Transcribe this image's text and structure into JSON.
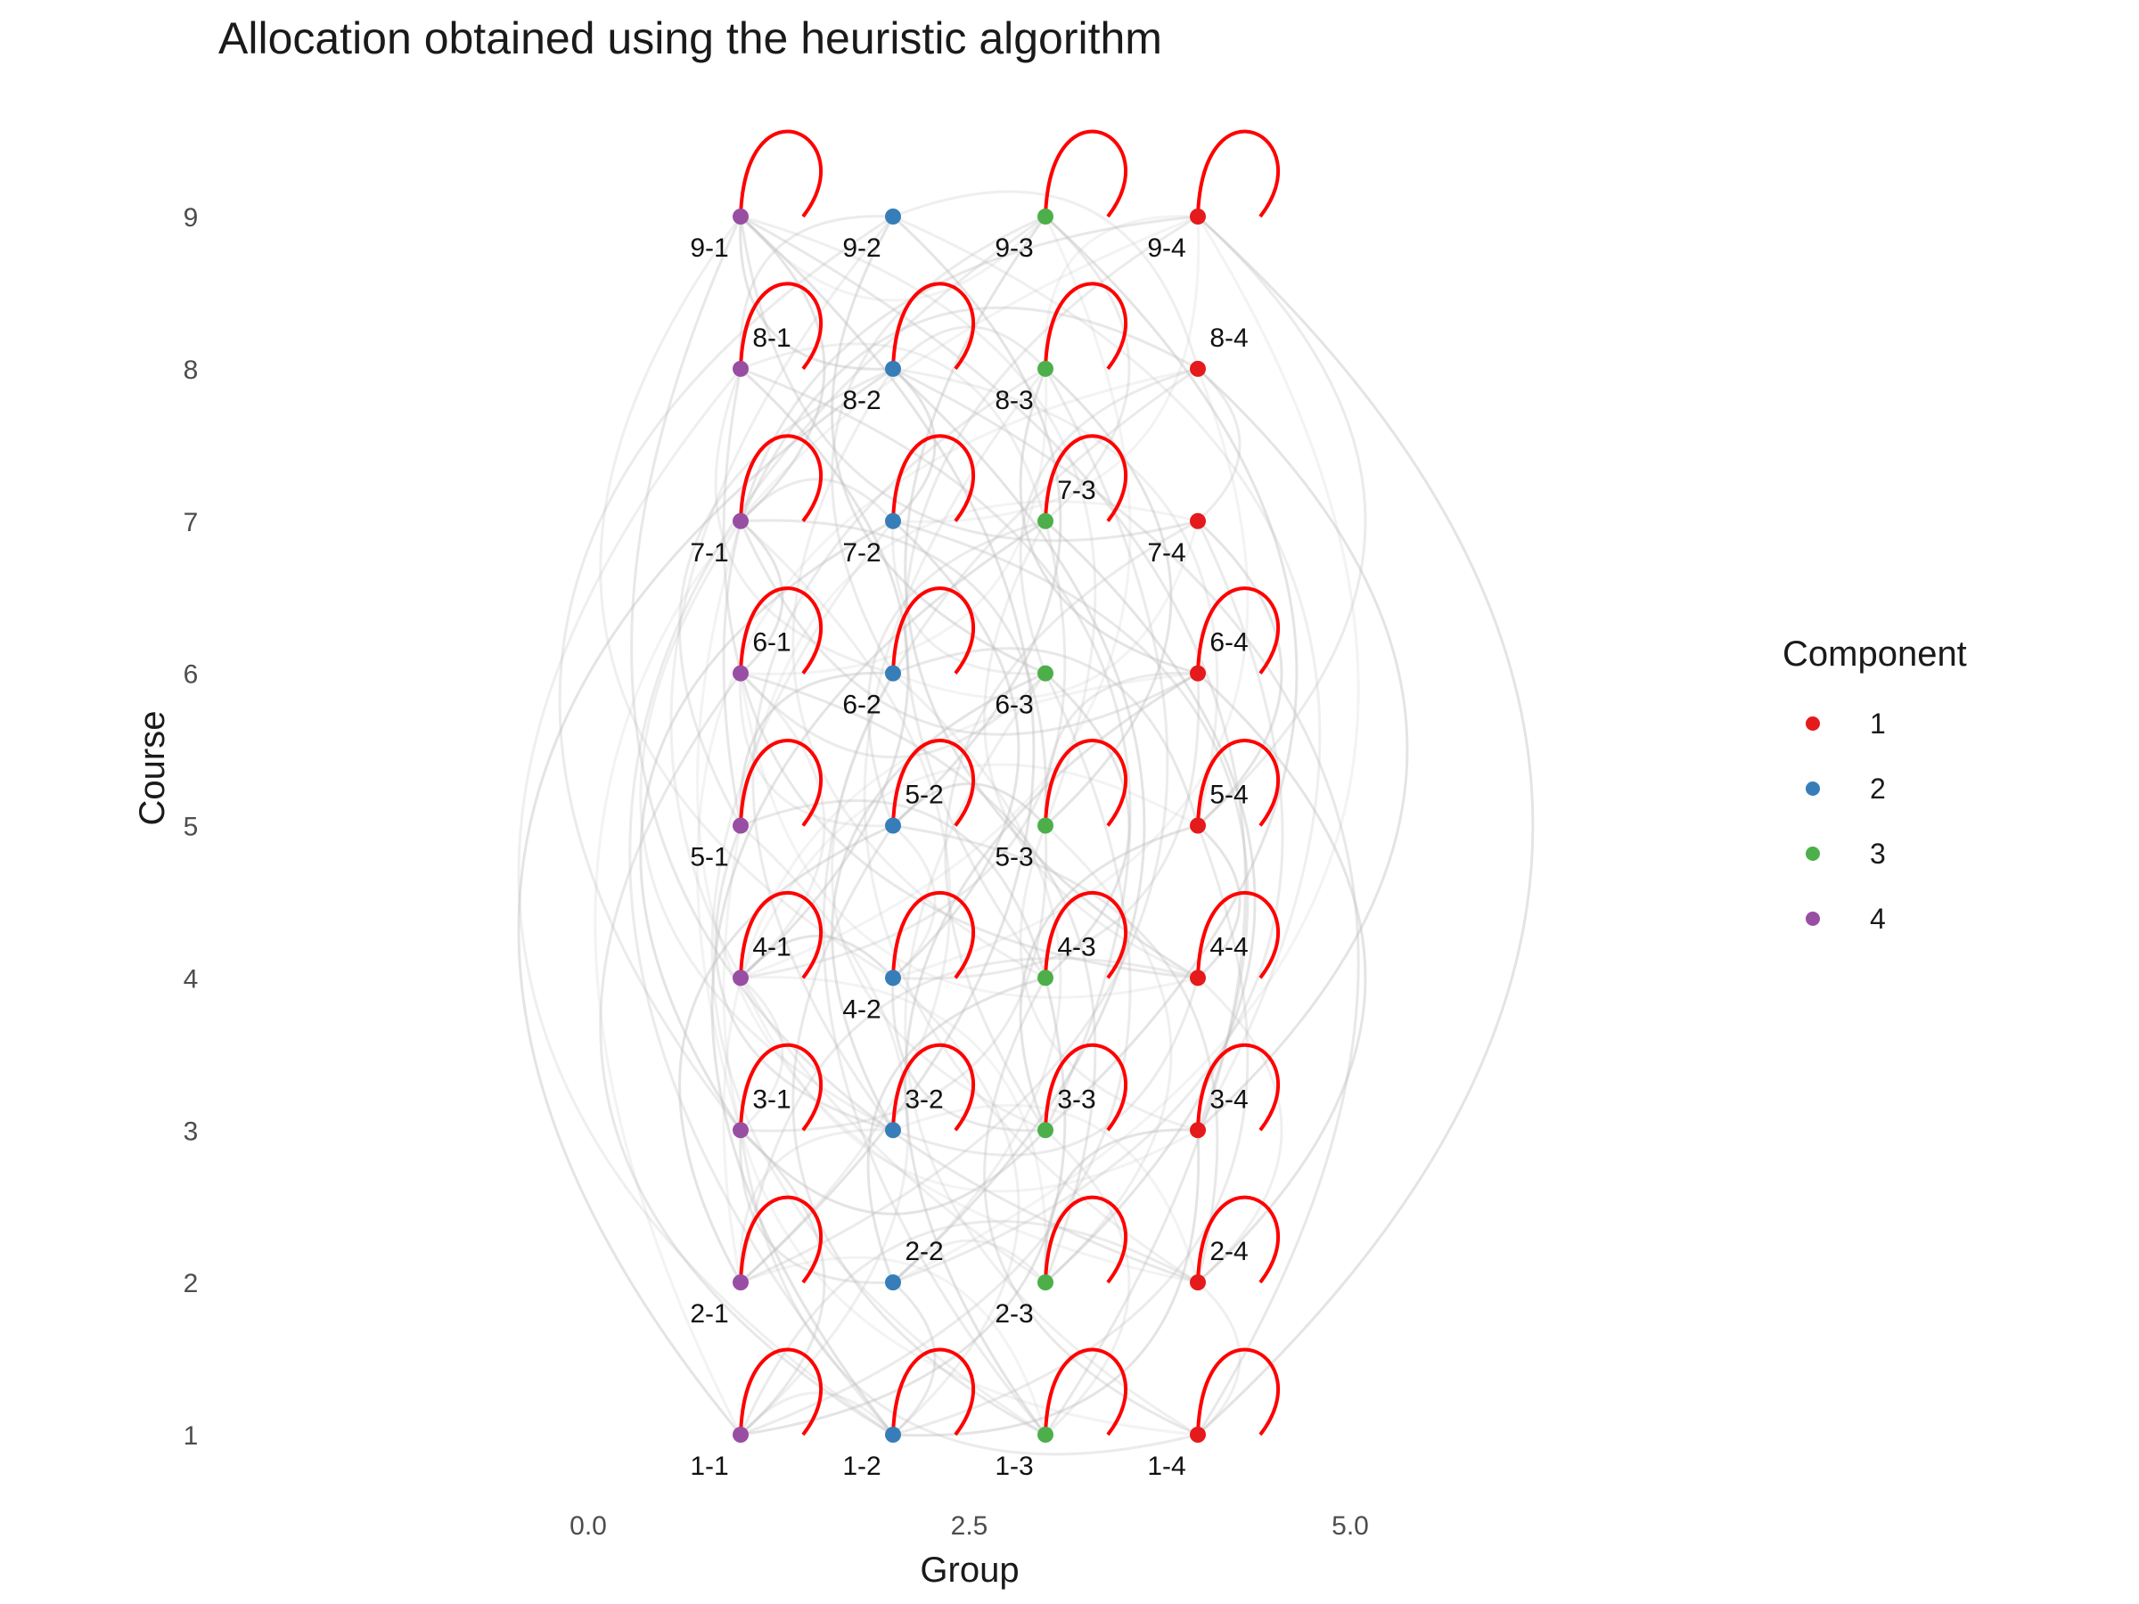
{
  "chart_data": {
    "type": "network",
    "title": "Allocation obtained using the heuristic algorithm",
    "xlabel": "Group",
    "ylabel": "Course",
    "x_ticks": [
      0.0,
      2.5,
      5.0
    ],
    "x_tick_labels": [
      "0.0",
      "2.5",
      "5.0"
    ],
    "y_ticks": [
      1,
      2,
      3,
      4,
      5,
      6,
      7,
      8,
      9
    ],
    "y_tick_labels": [
      "1",
      "2",
      "3",
      "4",
      "5",
      "6",
      "7",
      "8",
      "9"
    ],
    "xlim": [
      -1.9,
      6.9
    ],
    "ylim": [
      0.55,
      9.6
    ],
    "grid": false,
    "legend": {
      "title": "Component",
      "position": "right",
      "entries": [
        {
          "label": "1",
          "color": "#E41A1C"
        },
        {
          "label": "2",
          "color": "#377EB8"
        },
        {
          "label": "3",
          "color": "#4DAF4A"
        },
        {
          "label": "4",
          "color": "#984EA3"
        }
      ]
    },
    "edge_color": "#BEBEBE",
    "loop_color": "#FF0000",
    "nodes": [
      {
        "id": "1-1",
        "group": 1,
        "course": 1,
        "component": 4,
        "loop": true,
        "label_pos": "below"
      },
      {
        "id": "1-2",
        "group": 2,
        "course": 1,
        "component": 2,
        "loop": true,
        "label_pos": "below"
      },
      {
        "id": "1-3",
        "group": 3,
        "course": 1,
        "component": 3,
        "loop": true,
        "label_pos": "below"
      },
      {
        "id": "1-4",
        "group": 4,
        "course": 1,
        "component": 1,
        "loop": true,
        "label_pos": "below"
      },
      {
        "id": "2-1",
        "group": 1,
        "course": 2,
        "component": 4,
        "loop": true,
        "label_pos": "below"
      },
      {
        "id": "2-2",
        "group": 2,
        "course": 2,
        "component": 2,
        "loop": false,
        "label_pos": "above"
      },
      {
        "id": "2-3",
        "group": 3,
        "course": 2,
        "component": 3,
        "loop": true,
        "label_pos": "below"
      },
      {
        "id": "2-4",
        "group": 4,
        "course": 2,
        "component": 1,
        "loop": true,
        "label_pos": "above"
      },
      {
        "id": "3-1",
        "group": 1,
        "course": 3,
        "component": 4,
        "loop": true,
        "label_pos": "above"
      },
      {
        "id": "3-2",
        "group": 2,
        "course": 3,
        "component": 2,
        "loop": true,
        "label_pos": "above"
      },
      {
        "id": "3-3",
        "group": 3,
        "course": 3,
        "component": 3,
        "loop": true,
        "label_pos": "above"
      },
      {
        "id": "3-4",
        "group": 4,
        "course": 3,
        "component": 1,
        "loop": true,
        "label_pos": "above"
      },
      {
        "id": "4-1",
        "group": 1,
        "course": 4,
        "component": 4,
        "loop": true,
        "label_pos": "above"
      },
      {
        "id": "4-2",
        "group": 2,
        "course": 4,
        "component": 2,
        "loop": true,
        "label_pos": "below"
      },
      {
        "id": "4-3",
        "group": 3,
        "course": 4,
        "component": 3,
        "loop": true,
        "label_pos": "above"
      },
      {
        "id": "4-4",
        "group": 4,
        "course": 4,
        "component": 1,
        "loop": true,
        "label_pos": "above"
      },
      {
        "id": "5-1",
        "group": 1,
        "course": 5,
        "component": 4,
        "loop": true,
        "label_pos": "below"
      },
      {
        "id": "5-2",
        "group": 2,
        "course": 5,
        "component": 2,
        "loop": true,
        "label_pos": "above"
      },
      {
        "id": "5-3",
        "group": 3,
        "course": 5,
        "component": 3,
        "loop": true,
        "label_pos": "below"
      },
      {
        "id": "5-4",
        "group": 4,
        "course": 5,
        "component": 1,
        "loop": true,
        "label_pos": "above"
      },
      {
        "id": "6-1",
        "group": 1,
        "course": 6,
        "component": 4,
        "loop": true,
        "label_pos": "above"
      },
      {
        "id": "6-2",
        "group": 2,
        "course": 6,
        "component": 2,
        "loop": true,
        "label_pos": "below"
      },
      {
        "id": "6-3",
        "group": 3,
        "course": 6,
        "component": 3,
        "loop": false,
        "label_pos": "below"
      },
      {
        "id": "6-4",
        "group": 4,
        "course": 6,
        "component": 1,
        "loop": true,
        "label_pos": "above"
      },
      {
        "id": "7-1",
        "group": 1,
        "course": 7,
        "component": 4,
        "loop": true,
        "label_pos": "below"
      },
      {
        "id": "7-2",
        "group": 2,
        "course": 7,
        "component": 2,
        "loop": true,
        "label_pos": "below"
      },
      {
        "id": "7-3",
        "group": 3,
        "course": 7,
        "component": 3,
        "loop": true,
        "label_pos": "above"
      },
      {
        "id": "7-4",
        "group": 4,
        "course": 7,
        "component": 1,
        "loop": false,
        "label_pos": "below"
      },
      {
        "id": "8-1",
        "group": 1,
        "course": 8,
        "component": 4,
        "loop": true,
        "label_pos": "above"
      },
      {
        "id": "8-2",
        "group": 2,
        "course": 8,
        "component": 2,
        "loop": true,
        "label_pos": "below"
      },
      {
        "id": "8-3",
        "group": 3,
        "course": 8,
        "component": 3,
        "loop": true,
        "label_pos": "below"
      },
      {
        "id": "8-4",
        "group": 4,
        "course": 8,
        "component": 1,
        "loop": false,
        "label_pos": "above"
      },
      {
        "id": "9-1",
        "group": 1,
        "course": 9,
        "component": 4,
        "loop": true,
        "label_pos": "below"
      },
      {
        "id": "9-2",
        "group": 2,
        "course": 9,
        "component": 2,
        "loop": false,
        "label_pos": "below"
      },
      {
        "id": "9-3",
        "group": 3,
        "course": 9,
        "component": 3,
        "loop": true,
        "label_pos": "below"
      },
      {
        "id": "9-4",
        "group": 4,
        "course": 9,
        "component": 1,
        "loop": true,
        "label_pos": "below"
      }
    ]
  }
}
